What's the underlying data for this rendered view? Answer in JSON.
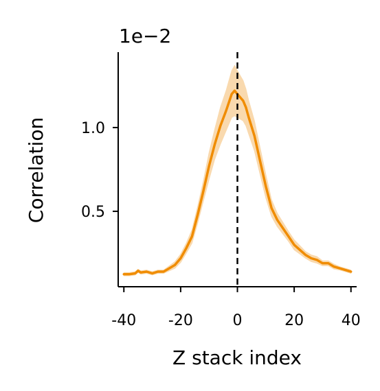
{
  "chart_data": {
    "type": "line",
    "title": "",
    "xlabel": "Z stack index",
    "ylabel": "Correlation",
    "offset_text": "1e−2",
    "xlim": [
      -42,
      42
    ],
    "ylim": [
      0.05,
      1.45
    ],
    "xticks": [
      -40,
      -20,
      0,
      20,
      40
    ],
    "xtick_labels": [
      "-40",
      "-20",
      "0",
      "20",
      "40"
    ],
    "yticks": [
      0.5,
      1.0
    ],
    "ytick_labels": [
      "0.5",
      "1.0"
    ],
    "grid": false,
    "reference_line": {
      "x": 0,
      "style": "dashed",
      "color": "#000000"
    },
    "colors": {
      "line": "#f08c00",
      "band": "#f8d3a0"
    },
    "series": [
      {
        "x": [
          -40,
          -38,
          -36,
          -35,
          -34,
          -32,
          -30,
          -28,
          -26,
          -24,
          -22,
          -20,
          -18,
          -16,
          -14,
          -12,
          -10,
          -8,
          -6,
          -4,
          -3,
          -2,
          -1,
          0,
          1,
          2,
          3,
          4,
          6,
          8,
          10,
          12,
          14,
          16,
          18,
          20,
          22,
          24,
          26,
          28,
          30,
          32,
          34,
          36,
          38,
          40
        ],
        "values": [
          0.125,
          0.125,
          0.13,
          0.145,
          0.135,
          0.14,
          0.13,
          0.14,
          0.14,
          0.16,
          0.18,
          0.22,
          0.28,
          0.35,
          0.48,
          0.62,
          0.77,
          0.9,
          1.01,
          1.1,
          1.15,
          1.2,
          1.22,
          1.2,
          1.18,
          1.16,
          1.12,
          1.06,
          0.95,
          0.8,
          0.65,
          0.52,
          0.45,
          0.4,
          0.35,
          0.3,
          0.27,
          0.24,
          0.22,
          0.21,
          0.19,
          0.19,
          0.17,
          0.16,
          0.15,
          0.14
        ],
        "band": [
          0.01,
          0.01,
          0.01,
          0.01,
          0.01,
          0.01,
          0.01,
          0.01,
          0.01,
          0.015,
          0.02,
          0.025,
          0.03,
          0.04,
          0.05,
          0.06,
          0.08,
          0.09,
          0.11,
          0.12,
          0.13,
          0.14,
          0.15,
          0.14,
          0.13,
          0.12,
          0.11,
          0.1,
          0.09,
          0.08,
          0.07,
          0.05,
          0.04,
          0.035,
          0.03,
          0.03,
          0.025,
          0.02,
          0.02,
          0.02,
          0.015,
          0.015,
          0.015,
          0.01,
          0.01,
          0.01
        ]
      }
    ]
  }
}
